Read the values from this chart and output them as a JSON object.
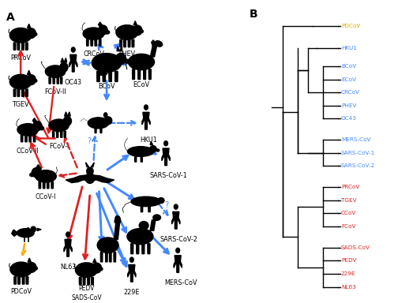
{
  "background_color": "#ffffff",
  "arrow_blue": "#4488ff",
  "arrow_red": "#dd2222",
  "arrow_orange": "#ffaa00",
  "tree_labels": [
    {
      "text": "PDCoV",
      "color": "#ddaa00",
      "y": 18.0
    },
    {
      "text": "HKU1",
      "color": "#4488ff",
      "y": 16.6
    },
    {
      "text": "BCoV",
      "color": "#4488ff",
      "y": 15.5
    },
    {
      "text": "ECoV",
      "color": "#4488ff",
      "y": 14.7
    },
    {
      "text": "CRCoV",
      "color": "#4488ff",
      "y": 13.9
    },
    {
      "text": "PHEV",
      "color": "#4488ff",
      "y": 13.1
    },
    {
      "text": "OC43",
      "color": "#4488ff",
      "y": 12.3
    },
    {
      "text": "MERS-CoV",
      "color": "#4488ff",
      "y": 11.0
    },
    {
      "text": "SARS-CoV-1",
      "color": "#4488ff",
      "y": 10.2
    },
    {
      "text": "SARS-CoV-2",
      "color": "#4488ff",
      "y": 9.4
    },
    {
      "text": "PRCoV",
      "color": "#dd2222",
      "y": 8.1
    },
    {
      "text": "TGEV",
      "color": "#dd2222",
      "y": 7.3
    },
    {
      "text": "CCoV",
      "color": "#dd2222",
      "y": 6.5
    },
    {
      "text": "FCoV",
      "color": "#dd2222",
      "y": 5.7
    },
    {
      "text": "SADS-CoV",
      "color": "#dd2222",
      "y": 4.4
    },
    {
      "text": "PEDV",
      "color": "#dd2222",
      "y": 3.6
    },
    {
      "text": "229E",
      "color": "#dd2222",
      "y": 2.8
    },
    {
      "text": "NL63",
      "color": "#dd2222",
      "y": 2.0
    }
  ]
}
